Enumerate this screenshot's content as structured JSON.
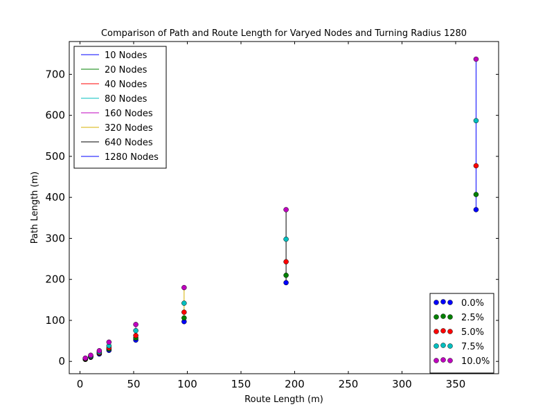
{
  "chart_data": {
    "type": "line",
    "title": "Comparison of Path and Route Length for Varyed Nodes and Turning Radius 1280",
    "xlabel": "Route Length (m)",
    "ylabel": "Path Length (m)",
    "xlim": [
      -10,
      390
    ],
    "ylim": [
      -30,
      780
    ],
    "xticks": [
      0,
      50,
      100,
      150,
      200,
      250,
      300,
      350
    ],
    "yticks": [
      0,
      100,
      200,
      300,
      400,
      500,
      600,
      700
    ],
    "grid": false,
    "legend_lines_position": "top-left",
    "legend_markers_position": "bottom-right",
    "series": [
      {
        "name": "10 Nodes",
        "color": "#0000ff",
        "x": [
          5,
          5
        ],
        "y": [
          5,
          8
        ]
      },
      {
        "name": "20 Nodes",
        "color": "#008000",
        "x": [
          10,
          10
        ],
        "y": [
          10,
          15
        ]
      },
      {
        "name": "40 Nodes",
        "color": "#ff0000",
        "x": [
          18,
          18
        ],
        "y": [
          18,
          26
        ]
      },
      {
        "name": "80 Nodes",
        "color": "#00bfbf",
        "x": [
          27,
          27
        ],
        "y": [
          27,
          47
        ]
      },
      {
        "name": "160 Nodes",
        "color": "#bf00bf",
        "x": [
          52,
          52
        ],
        "y": [
          52,
          90
        ]
      },
      {
        "name": "320 Nodes",
        "color": "#d4b000",
        "x": [
          97,
          97
        ],
        "y": [
          97,
          180
        ]
      },
      {
        "name": "640 Nodes",
        "color": "#000000",
        "x": [
          192,
          192
        ],
        "y": [
          192,
          370
        ]
      },
      {
        "name": "1280 Nodes",
        "color": "#0000ff",
        "x": [
          369,
          369
        ],
        "y": [
          370,
          737
        ]
      }
    ],
    "marker_series": [
      {
        "name": "0.0%",
        "color": "#0000ff",
        "x": [
          5,
          10,
          18,
          27,
          52,
          97,
          192,
          369
        ],
        "y": [
          5,
          10,
          18,
          27,
          52,
          97,
          192,
          370
        ]
      },
      {
        "name": "2.5%",
        "color": "#008000",
        "x": [
          5,
          10,
          18,
          27,
          52,
          97,
          192,
          369
        ],
        "y": [
          5,
          11,
          20,
          30,
          57,
          106,
          210,
          407
        ]
      },
      {
        "name": "5.0%",
        "color": "#ff0000",
        "x": [
          5,
          10,
          18,
          27,
          52,
          97,
          192,
          369
        ],
        "y": [
          6,
          12,
          21,
          33,
          63,
          120,
          243,
          477
        ]
      },
      {
        "name": "7.5%",
        "color": "#00bfbf",
        "x": [
          5,
          10,
          18,
          27,
          52,
          97,
          192,
          369
        ],
        "y": [
          7,
          13,
          23,
          38,
          75,
          142,
          298,
          587
        ]
      },
      {
        "name": "10.0%",
        "color": "#bf00bf",
        "x": [
          5,
          10,
          18,
          27,
          52,
          97,
          192,
          369
        ],
        "y": [
          8,
          15,
          26,
          47,
          90,
          180,
          370,
          737
        ]
      }
    ]
  }
}
